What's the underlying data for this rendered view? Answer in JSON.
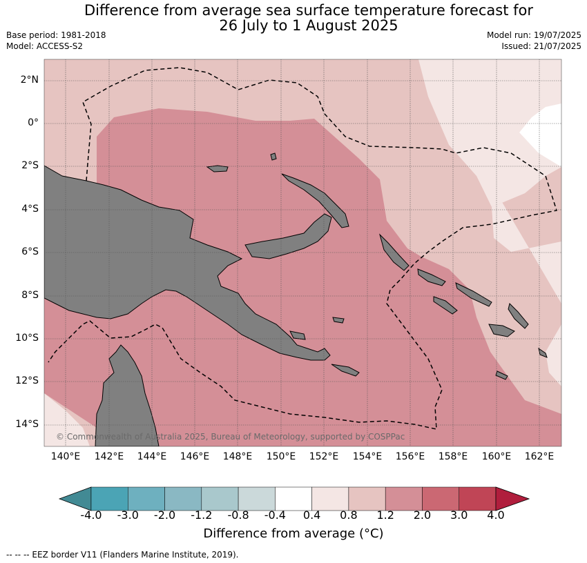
{
  "title": {
    "line1": "Difference from average sea surface temperature forecast for",
    "line2": "26 July to 1 August 2025"
  },
  "meta": {
    "base_period": "Base period: 1981-2018",
    "model": "Model: ACCESS-S2",
    "model_run": "Model run: 19/07/2025",
    "issued": "Issued: 21/07/2025"
  },
  "map": {
    "lat_labels": [
      "2°N",
      "0°",
      "2°S",
      "4°S",
      "6°S",
      "8°S",
      "10°S",
      "12°S",
      "14°S"
    ],
    "lon_labels": [
      "140°E",
      "142°E",
      "144°E",
      "146°E",
      "148°E",
      "150°E",
      "152°E",
      "154°E",
      "156°E",
      "158°E",
      "160°E",
      "162°E"
    ],
    "copyright": "© Commonwealth of Australia 2025, Bureau of Meteorology, supported by COSPPac",
    "land_color": "#808080",
    "grid": "dotted"
  },
  "colorbar": {
    "labels": [
      "-4.0",
      "-3.0",
      "-2.0",
      "-1.2",
      "-0.8",
      "-0.4",
      "0.4",
      "0.8",
      "1.2",
      "2.0",
      "3.0",
      "4.0"
    ],
    "colors": [
      "#428a94",
      "#4ba4b5",
      "#6eb0bf",
      "#8ab8c3",
      "#a9c8cc",
      "#cbd9da",
      "#ffffff",
      "#f4e6e4",
      "#e6c4c1",
      "#d48f97",
      "#cb6873",
      "#c04556",
      "#b01e3d"
    ],
    "title": "Difference from average (°C)"
  },
  "footer": "--  --  -- EEZ border V11 (Flanders Marine Institute, 2019)."
}
